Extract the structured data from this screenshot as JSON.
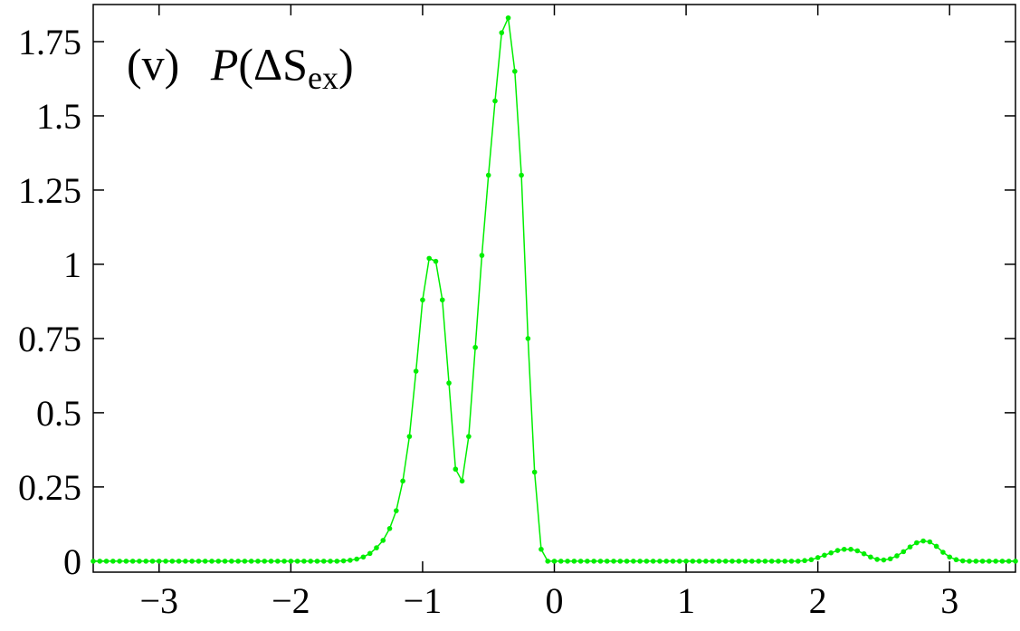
{
  "chart_data": {
    "type": "line",
    "title_parts": [
      "(v)",
      "P",
      "(ΔS",
      "ex",
      ")"
    ],
    "x": [
      -3.5,
      -3.45,
      -3.4,
      -3.35,
      -3.3,
      -3.25,
      -3.2,
      -3.15,
      -3.1,
      -3.05,
      -3,
      -2.95,
      -2.9,
      -2.85,
      -2.8,
      -2.75,
      -2.7,
      -2.65,
      -2.6,
      -2.55,
      -2.5,
      -2.45,
      -2.4,
      -2.35,
      -2.3,
      -2.25,
      -2.2,
      -2.15,
      -2.1,
      -2.05,
      -2,
      -1.95,
      -1.9,
      -1.85,
      -1.8,
      -1.75,
      -1.7,
      -1.65,
      -1.6,
      -1.55,
      -1.5,
      -1.45,
      -1.4,
      -1.35,
      -1.3,
      -1.25,
      -1.2,
      -1.15,
      -1.1,
      -1.05,
      -1,
      -0.95,
      -0.9,
      -0.85,
      -0.8,
      -0.75,
      -0.7,
      -0.65,
      -0.6,
      -0.55,
      -0.5,
      -0.45,
      -0.4,
      -0.35,
      -0.3,
      -0.25,
      -0.2,
      -0.15,
      -0.1,
      -0.05,
      0,
      0.05,
      0.1,
      0.15,
      0.2,
      0.25,
      0.3,
      0.35,
      0.4,
      0.45,
      0.5,
      0.55,
      0.6,
      0.65,
      0.7,
      0.75,
      0.8,
      0.85,
      0.9,
      0.95,
      1,
      1.05,
      1.1,
      1.15,
      1.2,
      1.25,
      1.3,
      1.35,
      1.4,
      1.45,
      1.5,
      1.55,
      1.6,
      1.65,
      1.7,
      1.75,
      1.8,
      1.85,
      1.9,
      1.95,
      2,
      2.05,
      2.1,
      2.15,
      2.2,
      2.25,
      2.3,
      2.35,
      2.4,
      2.45,
      2.5,
      2.55,
      2.6,
      2.65,
      2.7,
      2.75,
      2.8,
      2.85,
      2.9,
      2.95,
      3,
      3.05,
      3.1,
      3.15,
      3.2,
      3.25,
      3.3,
      3.35,
      3.4,
      3.45,
      3.5
    ],
    "series": [
      {
        "color": "#00ee00",
        "values": [
          0,
          0,
          0,
          0,
          0,
          0,
          0,
          0,
          0,
          0,
          0,
          0,
          0,
          0,
          0,
          0,
          0,
          0,
          0,
          0,
          0,
          0,
          0,
          0,
          0,
          0,
          0,
          0,
          0,
          0,
          0,
          0,
          0,
          0,
          0,
          0,
          0,
          0,
          0.001,
          0.003,
          0.007,
          0.014,
          0.026,
          0.045,
          0.07,
          0.11,
          0.17,
          0.27,
          0.42,
          0.64,
          0.88,
          1.02,
          1.01,
          0.88,
          0.6,
          0.31,
          0.27,
          0.42,
          0.72,
          1.03,
          1.3,
          1.55,
          1.78,
          1.83,
          1.65,
          1.3,
          0.75,
          0.3,
          0.04,
          0,
          0,
          0,
          0,
          0,
          0,
          0,
          0,
          0,
          0,
          0,
          0,
          0,
          0,
          0,
          0,
          0,
          0,
          0,
          0,
          0,
          0,
          0,
          0,
          0,
          0,
          0,
          0,
          0,
          0,
          0,
          0,
          0,
          0,
          0,
          0,
          0,
          0,
          0,
          0.002,
          0.005,
          0.012,
          0.02,
          0.028,
          0.036,
          0.04,
          0.04,
          0.035,
          0.025,
          0.014,
          0.006,
          0.004,
          0.008,
          0.018,
          0.032,
          0.048,
          0.062,
          0.068,
          0.065,
          0.05,
          0.03,
          0.014,
          0.005,
          0.001,
          0,
          0,
          0,
          0,
          0,
          0,
          0,
          0
        ]
      }
    ],
    "xlim": [
      -3.5,
      3.5
    ],
    "xticks": [
      {
        "value": -3,
        "label": "−3"
      },
      {
        "value": -2,
        "label": "−2"
      },
      {
        "value": -1,
        "label": "−1"
      },
      0,
      1,
      2,
      3
    ],
    "ylim": [
      -0.037,
      1.875
    ],
    "yticks": [
      0,
      0.25,
      0.5,
      0.75,
      1,
      1.25,
      1.5,
      1.75
    ]
  }
}
